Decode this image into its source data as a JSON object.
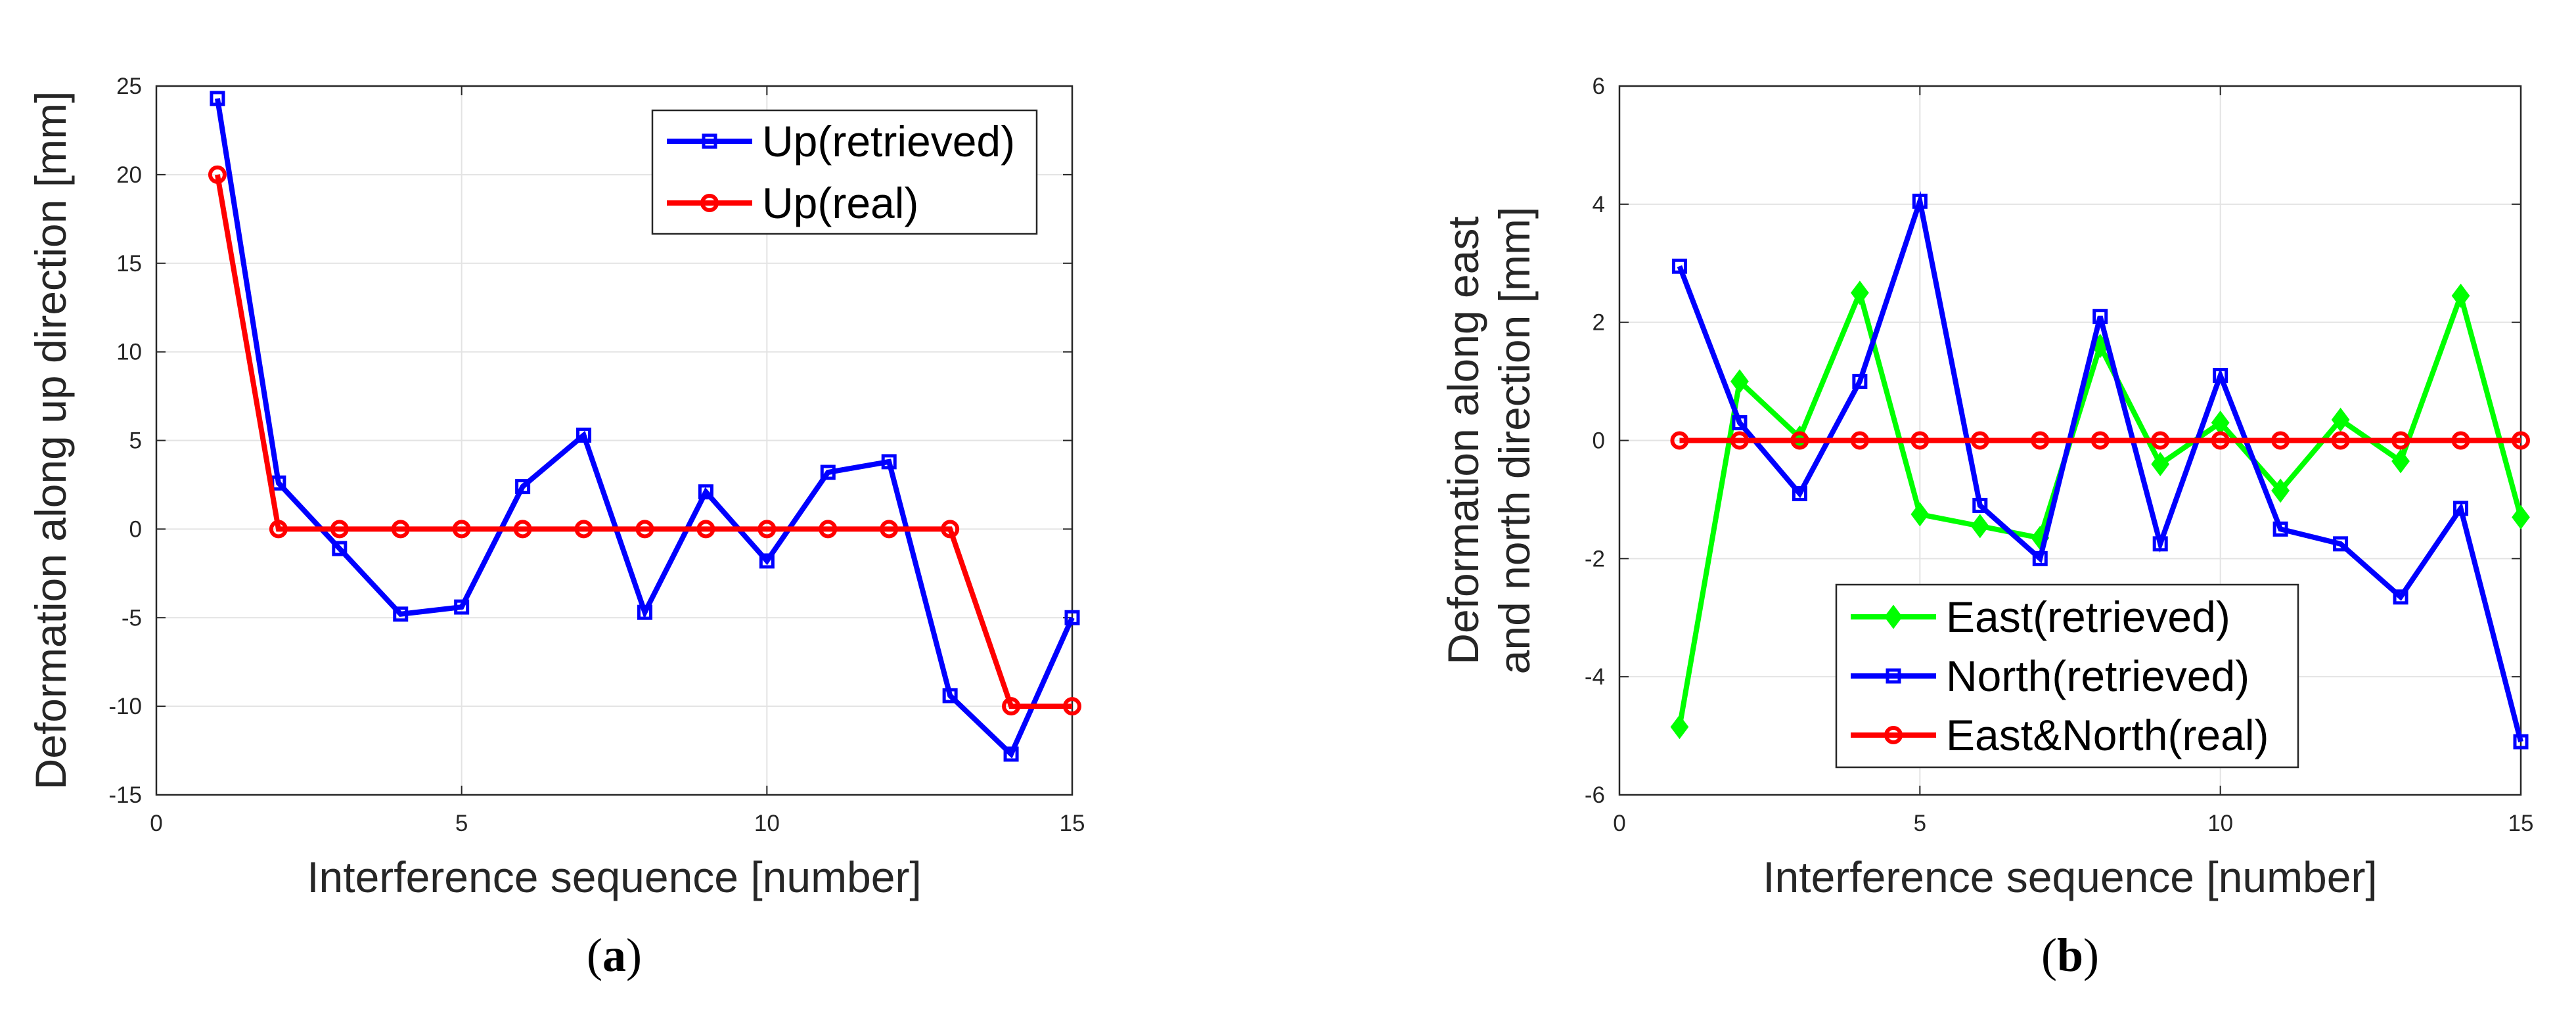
{
  "chart_data": [
    {
      "type": "line",
      "panel_label": {
        "open": "(",
        "letter": "a",
        "close": ")"
      },
      "xlabel": "Interference sequence [number]",
      "ylabel": "Deformation along up direction [mm]",
      "xlim": [
        0,
        15
      ],
      "ylim": [
        -15,
        25
      ],
      "xticks": [
        0,
        5,
        10,
        15
      ],
      "yticks": [
        -15,
        -10,
        -5,
        0,
        5,
        10,
        15,
        20,
        25
      ],
      "grid": true,
      "legend_position": "top-right",
      "series": [
        {
          "name": "Up(retrieved)",
          "color": "#0000ff",
          "marker": "square",
          "x": [
            1,
            2,
            3,
            4,
            5,
            6,
            7,
            8,
            9,
            10,
            11,
            12,
            13,
            14,
            15
          ],
          "y": [
            24.3,
            2.6,
            -1.1,
            -4.8,
            -4.4,
            2.4,
            5.3,
            -4.7,
            2.1,
            -1.8,
            3.2,
            3.8,
            -9.4,
            -12.7,
            -5.0
          ]
        },
        {
          "name": "Up(real)",
          "color": "#ff0000",
          "marker": "circle",
          "x": [
            1,
            2,
            3,
            4,
            5,
            6,
            7,
            8,
            9,
            10,
            11,
            12,
            13,
            14,
            15
          ],
          "y": [
            20,
            0,
            0,
            0,
            0,
            0,
            0,
            0,
            0,
            0,
            0,
            0,
            0,
            -10,
            -10
          ]
        }
      ]
    },
    {
      "type": "line",
      "panel_label": {
        "open": "(",
        "letter": "b",
        "close": ")"
      },
      "xlabel": "Interference sequence [number]",
      "ylabel": [
        "Deformation along east",
        "and north direction [mm]"
      ],
      "xlim": [
        0,
        15
      ],
      "ylim": [
        -6,
        6
      ],
      "xticks": [
        0,
        5,
        10,
        15
      ],
      "yticks": [
        -6,
        -4,
        -2,
        0,
        2,
        4,
        6
      ],
      "grid": true,
      "legend_position": "bottom-center",
      "series": [
        {
          "name": "East(retrieved)",
          "color": "#00ff00",
          "marker": "diamond",
          "x": [
            1,
            2,
            3,
            4,
            5,
            6,
            7,
            8,
            9,
            10,
            11,
            12,
            13,
            14,
            15
          ],
          "y": [
            -4.85,
            1.0,
            0.05,
            2.5,
            -1.25,
            -1.45,
            -1.65,
            1.6,
            -0.4,
            0.3,
            -0.85,
            0.35,
            -0.35,
            2.45,
            -1.3
          ]
        },
        {
          "name": "North(retrieved)",
          "color": "#0000ff",
          "marker": "square",
          "x": [
            1,
            2,
            3,
            4,
            5,
            6,
            7,
            8,
            9,
            10,
            11,
            12,
            13,
            14,
            15
          ],
          "y": [
            2.95,
            0.3,
            -0.9,
            1.0,
            4.05,
            -1.1,
            -2.0,
            2.1,
            -1.75,
            1.1,
            -1.5,
            -1.75,
            -2.65,
            -1.15,
            -5.1
          ]
        },
        {
          "name": "East&North(real)",
          "color": "#ff0000",
          "marker": "circle",
          "x": [
            1,
            2,
            3,
            4,
            5,
            6,
            7,
            8,
            9,
            10,
            11,
            12,
            13,
            14,
            15
          ],
          "y": [
            0,
            0,
            0,
            0,
            0,
            0,
            0,
            0,
            0,
            0,
            0,
            0,
            0,
            0,
            0
          ]
        }
      ]
    }
  ]
}
